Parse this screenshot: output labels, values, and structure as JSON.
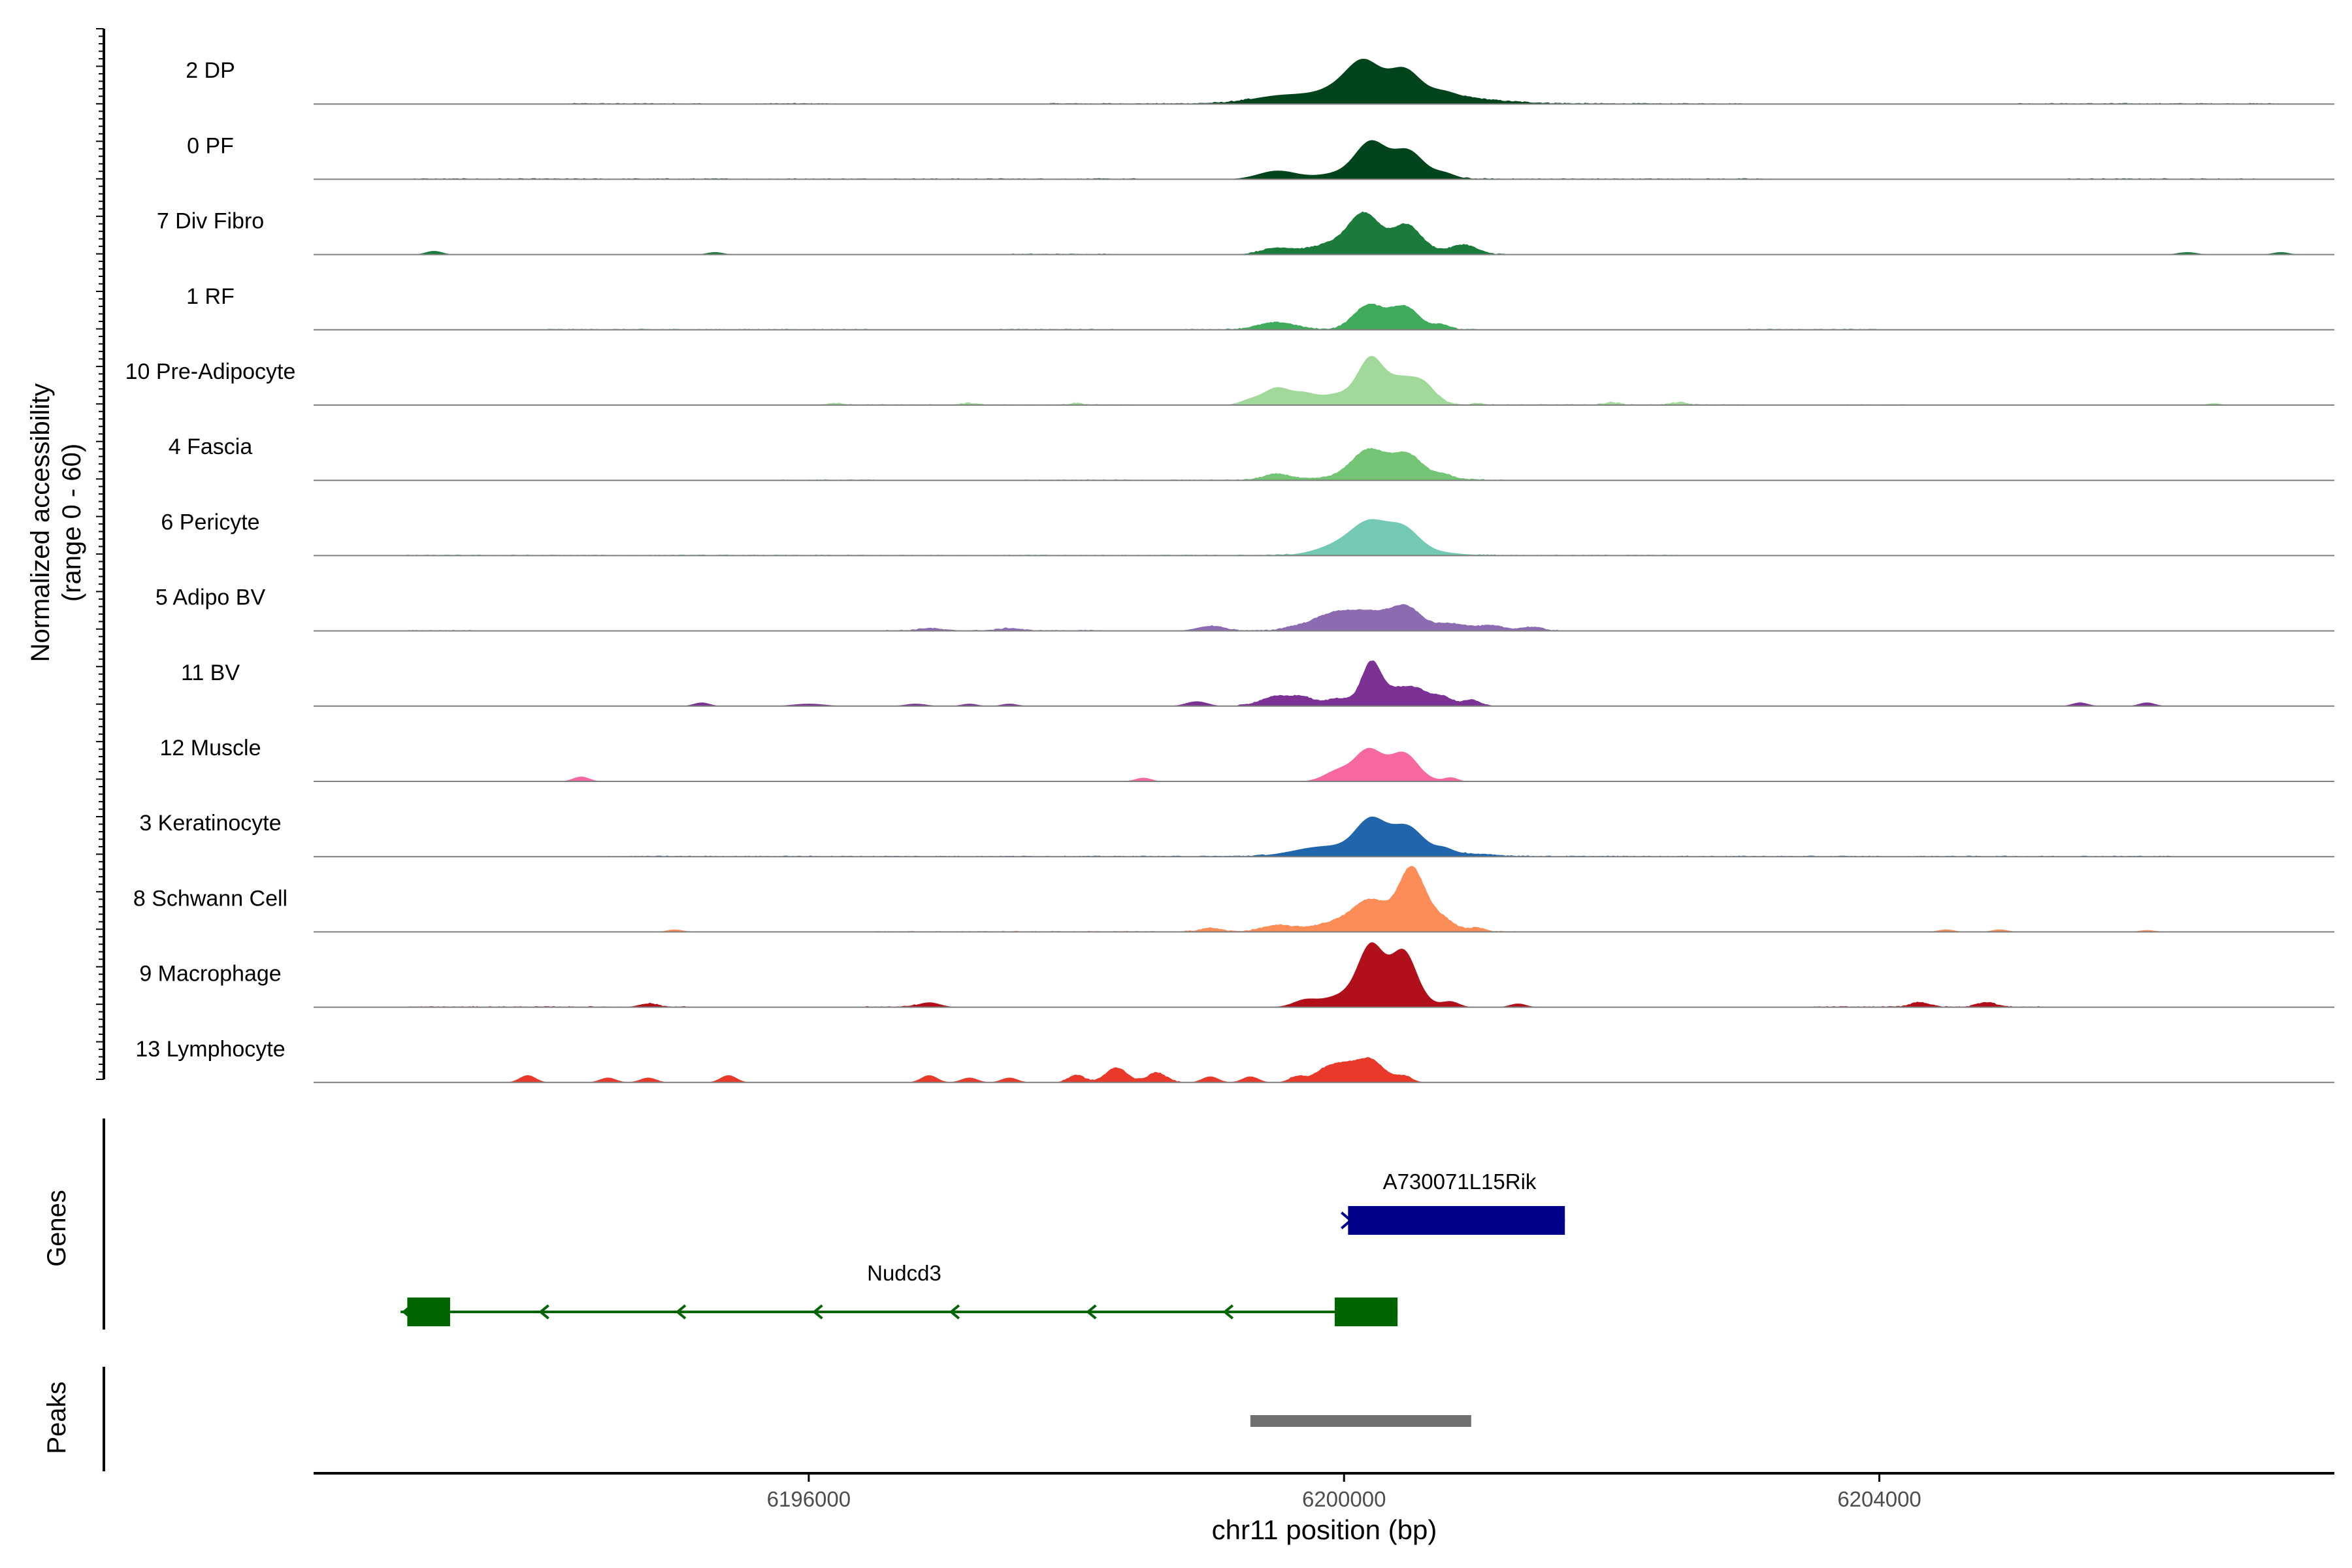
{
  "chart_data": {
    "type": "area",
    "genome_browser": true,
    "xlabel": "chr11 position (bp)",
    "x_ticks": [
      6196000,
      6200000,
      6204000
    ],
    "x_tick_labels": [
      "6196000",
      "6200000",
      "6204000"
    ],
    "xlim": [
      6192300,
      6207400
    ],
    "coverage_ylabel": [
      "Normalized accessibility",
      "(range 0 - 60)"
    ],
    "ylim": [
      0,
      60
    ],
    "tracks": [
      {
        "name": "2 DP",
        "color": "#00441b",
        "peaks": [
          [
            6197000,
            0.4,
            250
          ],
          [
            6199500,
            4,
            200
          ],
          [
            6200000,
            6,
            150
          ],
          [
            6200150,
            22,
            120
          ],
          [
            6200450,
            18,
            110
          ],
          [
            6200300,
            12,
            500
          ],
          [
            6200750,
            3,
            90
          ]
        ],
        "noise": [
          [
            6194200,
            6195200
          ],
          [
            6195600,
            6196200
          ],
          [
            6197800,
            6199300
          ],
          [
            6200900,
            6203000
          ],
          [
            6205000,
            6207000
          ]
        ]
      },
      {
        "name": "0 PF",
        "color": "#00441b",
        "peaks": [
          [
            6199500,
            7,
            140
          ],
          [
            6200000,
            4,
            200
          ],
          [
            6200200,
            24,
            110
          ],
          [
            6200480,
            19,
            110
          ],
          [
            6200330,
            6,
            250
          ],
          [
            6200750,
            4,
            80
          ]
        ],
        "noise": [
          [
            6193000,
            6198500
          ],
          [
            6200900,
            6203200
          ],
          [
            6205400,
            6206800
          ]
        ]
      },
      {
        "name": "7 Div Fibro",
        "color": "#1a7b3c",
        "peaks": [
          [
            6193200,
            3,
            60
          ],
          [
            6195300,
            2,
            60
          ],
          [
            6199500,
            5,
            120
          ],
          [
            6199900,
            6,
            160
          ],
          [
            6200150,
            26,
            110
          ],
          [
            6200470,
            18,
            100
          ],
          [
            6200300,
            8,
            300
          ],
          [
            6200900,
            7,
            90
          ],
          [
            6206300,
            2,
            70
          ],
          [
            6207000,
            2,
            60
          ]
        ],
        "noise": [
          [
            6197500,
            6198300
          ],
          [
            6199300,
            6201200
          ]
        ]
      },
      {
        "name": "1 RF",
        "color": "#41ab5d",
        "peaks": [
          [
            6199500,
            6,
            140
          ],
          [
            6200180,
            20,
            110
          ],
          [
            6200450,
            19,
            110
          ],
          [
            6200730,
            4,
            60
          ]
        ],
        "noise": [
          [
            6194000,
            6196500
          ],
          [
            6197400,
            6198300
          ],
          [
            6198800,
            6201000
          ],
          [
            6203000,
            6204000
          ]
        ]
      },
      {
        "name": "10 Pre-Adipocyte",
        "color": "#a1d99b",
        "peaks": [
          [
            6199300,
            4,
            80
          ],
          [
            6199500,
            14,
            100
          ],
          [
            6199700,
            6,
            80
          ],
          [
            6200000,
            10,
            200
          ],
          [
            6200200,
            32,
            90
          ],
          [
            6200420,
            20,
            110
          ],
          [
            6200600,
            15,
            90
          ],
          [
            6196200,
            1.5,
            50
          ],
          [
            6197200,
            1.5,
            50
          ],
          [
            6198000,
            1.5,
            50
          ],
          [
            6201000,
            1.5,
            40
          ],
          [
            6202000,
            2,
            60
          ],
          [
            6202500,
            2,
            60
          ],
          [
            6206500,
            1.5,
            50
          ]
        ],
        "noise": [
          [
            6196000,
            6198400
          ],
          [
            6200700,
            6203000
          ],
          [
            6203700,
            6204200
          ]
        ]
      },
      {
        "name": "4 Fascia",
        "color": "#74c476",
        "peaks": [
          [
            6199500,
            5,
            100
          ],
          [
            6200180,
            20,
            120
          ],
          [
            6200470,
            17,
            110
          ],
          [
            6200300,
            6,
            300
          ],
          [
            6200750,
            3,
            60
          ]
        ],
        "noise": [
          [
            6195800,
            6196500
          ],
          [
            6197600,
            6198500
          ],
          [
            6198700,
            6201200
          ]
        ]
      },
      {
        "name": "6 Pericyte",
        "color": "#74c9b4",
        "peaks": [
          [
            6200000,
            7,
            180
          ],
          [
            6200200,
            18,
            130
          ],
          [
            6200450,
            15,
            110
          ],
          [
            6200330,
            8,
            300
          ]
        ],
        "noise": [
          [
            6193000,
            6199600
          ],
          [
            6201000,
            6202500
          ]
        ]
      },
      {
        "name": "5 Adipo BV",
        "color": "#8c6bb1",
        "peaks": [
          [
            6196900,
            2,
            80
          ],
          [
            6197500,
            2,
            80
          ],
          [
            6199000,
            4,
            100
          ],
          [
            6199600,
            2,
            80
          ],
          [
            6199800,
            5,
            120
          ],
          [
            6200000,
            14,
            150
          ],
          [
            6200250,
            11,
            130
          ],
          [
            6200470,
            18,
            110
          ],
          [
            6200800,
            6,
            120
          ],
          [
            6201100,
            4,
            100
          ],
          [
            6201400,
            3,
            80
          ]
        ],
        "noise": [
          [
            6193000,
            6193500
          ],
          [
            6196500,
            6198200
          ],
          [
            6199000,
            6201600
          ]
        ]
      },
      {
        "name": "11 BV",
        "color": "#7b3294",
        "peaks": [
          [
            6195200,
            3,
            60
          ],
          [
            6196000,
            2,
            120
          ],
          [
            6196800,
            2,
            80
          ],
          [
            6197200,
            2,
            60
          ],
          [
            6197500,
            2,
            60
          ],
          [
            6198900,
            4,
            80
          ],
          [
            6199500,
            8,
            120
          ],
          [
            6199700,
            6,
            80
          ],
          [
            6199950,
            6,
            90
          ],
          [
            6200200,
            30,
            70
          ],
          [
            6200350,
            12,
            150
          ],
          [
            6200550,
            10,
            110
          ],
          [
            6200750,
            6,
            70
          ],
          [
            6200950,
            5,
            60
          ],
          [
            6205500,
            3,
            60
          ],
          [
            6206000,
            3,
            60
          ]
        ],
        "noise": [
          [
            6199200,
            6201100
          ]
        ]
      },
      {
        "name": "12 Muscle",
        "color": "#f768a1",
        "peaks": [
          [
            6194300,
            4,
            60
          ],
          [
            6198500,
            3,
            60
          ],
          [
            6199950,
            8,
            100
          ],
          [
            6200180,
            22,
            100
          ],
          [
            6200450,
            19,
            100
          ],
          [
            6200320,
            6,
            200
          ],
          [
            6200800,
            3,
            50
          ]
        ],
        "noise": []
      },
      {
        "name": "3 Keratinocyte",
        "color": "#2166ac",
        "peaks": [
          [
            6199800,
            5,
            200
          ],
          [
            6200200,
            24,
            110
          ],
          [
            6200470,
            18,
            110
          ],
          [
            6200330,
            8,
            400
          ],
          [
            6200750,
            3,
            60
          ]
        ],
        "noise": [
          [
            6194500,
            6199400
          ],
          [
            6200900,
            6204000
          ],
          [
            6204200,
            6206200
          ]
        ]
      },
      {
        "name": "8 Schwann Cell",
        "color": "#fc8d59",
        "peaks": [
          [
            6195000,
            2,
            60
          ],
          [
            6199000,
            3,
            80
          ],
          [
            6199500,
            5,
            120
          ],
          [
            6200000,
            9,
            200
          ],
          [
            6200200,
            20,
            120
          ],
          [
            6200500,
            36,
            90
          ],
          [
            6200550,
            18,
            160
          ],
          [
            6200750,
            4,
            80
          ],
          [
            6201000,
            3,
            60
          ],
          [
            6204500,
            2,
            60
          ],
          [
            6204900,
            2,
            60
          ],
          [
            6206000,
            1.5,
            60
          ]
        ],
        "noise": [
          [
            6196500,
            6198600
          ],
          [
            6198800,
            6201300
          ]
        ]
      },
      {
        "name": "9 Macrophage",
        "color": "#b10f19",
        "peaks": [
          [
            6194800,
            3,
            70
          ],
          [
            6196900,
            4,
            80
          ],
          [
            6199700,
            4,
            80
          ],
          [
            6200000,
            8,
            200
          ],
          [
            6200200,
            36,
            90
          ],
          [
            6200450,
            34,
            90
          ],
          [
            6200330,
            15,
            200
          ],
          [
            6200800,
            4,
            60
          ],
          [
            6201300,
            3,
            60
          ],
          [
            6204300,
            4,
            70
          ],
          [
            6204800,
            4,
            70
          ]
        ],
        "noise": [
          [
            6193000,
            6194600
          ],
          [
            6194800,
            6195100
          ],
          [
            6196400,
            6196800
          ],
          [
            6203500,
            6205200
          ]
        ]
      },
      {
        "name": "13 Lymphocyte",
        "color": "#e8392a",
        "peaks": [
          [
            6193900,
            6,
            60
          ],
          [
            6194500,
            4,
            60
          ],
          [
            6194800,
            4,
            60
          ],
          [
            6195400,
            6,
            60
          ],
          [
            6196900,
            6,
            60
          ],
          [
            6197200,
            4,
            60
          ],
          [
            6197500,
            4,
            60
          ],
          [
            6198000,
            6,
            60
          ],
          [
            6198300,
            12,
            80
          ],
          [
            6198600,
            8,
            70
          ],
          [
            6199000,
            5,
            60
          ],
          [
            6199300,
            5,
            60
          ],
          [
            6199650,
            5,
            60
          ],
          [
            6199850,
            8,
            80
          ],
          [
            6200000,
            13,
            100
          ],
          [
            6200200,
            18,
            100
          ],
          [
            6200450,
            5,
            60
          ]
        ],
        "noise": [
          [
            6197900,
            6198800
          ],
          [
            6199600,
            6200500
          ]
        ]
      }
    ],
    "genes_label": "Genes",
    "genes": [
      {
        "name": "A730071L15Rik",
        "start": 6200030,
        "end": 6201650,
        "strand": "+",
        "color": "#00008b",
        "exons": [
          [
            6200030,
            6201650
          ]
        ]
      },
      {
        "name": "Nudcd3",
        "start": 6192950,
        "end": 6200400,
        "strand": "-",
        "color": "#006400",
        "exons": [
          [
            6193000,
            6193320
          ],
          [
            6199930,
            6200400
          ]
        ]
      }
    ],
    "peaks_label": "Peaks",
    "peak_regions": [
      {
        "start": 6199300,
        "end": 6200950,
        "color": "#707070"
      }
    ]
  }
}
